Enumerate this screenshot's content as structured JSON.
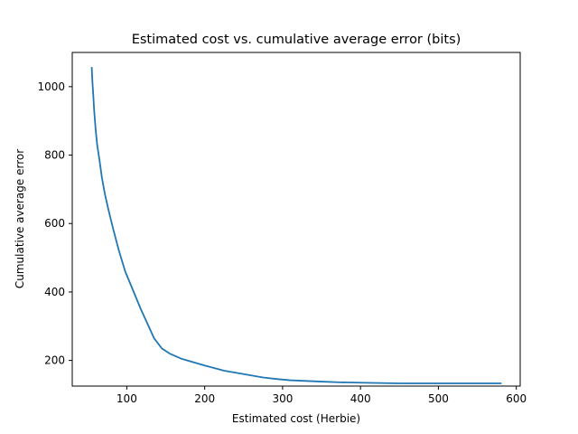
{
  "chart_data": {
    "type": "line",
    "title": "Estimated cost vs. cumulative average error (bits)",
    "xlabel": "Estimated cost (Herbie)",
    "ylabel": "Cumulative average error",
    "xlim": [
      30,
      605
    ],
    "ylim": [
      125,
      1100
    ],
    "xticks": [
      100,
      200,
      300,
      400,
      500,
      600
    ],
    "yticks": [
      200,
      400,
      600,
      800,
      1000
    ],
    "grid": false,
    "series": [
      {
        "color": "#1f77b4",
        "x": [
          55,
          56,
          57,
          58,
          60,
          62,
          65,
          68,
          72,
          77,
          83,
          90,
          98,
          108,
          118,
          128,
          135,
          145,
          155,
          170,
          185,
          200,
          225,
          250,
          275,
          295,
          310,
          330,
          350,
          375,
          400,
          425,
          450,
          475,
          500,
          530,
          560,
          580
        ],
        "y": [
          1055,
          1010,
          975,
          935,
          875,
          830,
          785,
          735,
          685,
          635,
          580,
          520,
          460,
          405,
          350,
          300,
          265,
          235,
          220,
          205,
          195,
          185,
          170,
          160,
          150,
          145,
          142,
          140,
          138,
          136,
          135,
          134,
          133,
          133,
          133,
          133,
          133,
          133
        ]
      }
    ]
  }
}
